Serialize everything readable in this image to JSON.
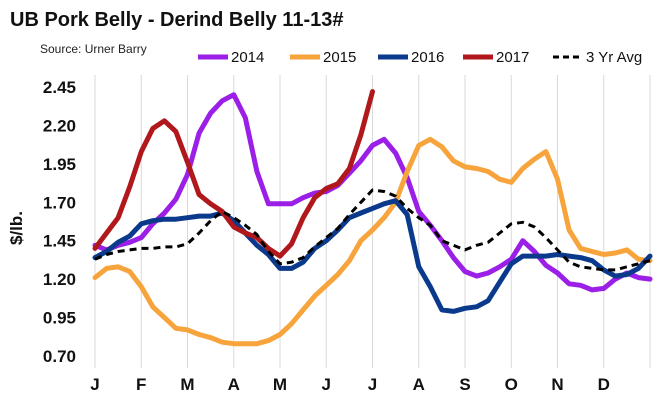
{
  "chart_data": {
    "type": "line",
    "title": "UB Pork Belly - Derind Belly 11-13#",
    "subtitle": "Source: Urner Barry",
    "ylabel": "$/lb.",
    "xlabel": "",
    "ylim": [
      0.7,
      2.45
    ],
    "xlim": [
      0,
      12
    ],
    "yticks": [
      0.7,
      0.95,
      1.2,
      1.45,
      1.7,
      1.95,
      2.2,
      2.45
    ],
    "ytick_labels": [
      "0.70",
      "0.95",
      "1.20",
      "1.45",
      "1.70",
      "1.95",
      "2.20",
      "2.45"
    ],
    "xtick_labels": [
      "J",
      "F",
      "M",
      "A",
      "M",
      "J",
      "J",
      "A",
      "S",
      "O",
      "N",
      "D"
    ],
    "grid": "vertical",
    "legend_position": "top",
    "series": [
      {
        "name": "2014",
        "color": "#9b1fe6",
        "dash": "solid",
        "x": [
          0,
          0.25,
          0.5,
          0.75,
          1,
          1.25,
          1.5,
          1.75,
          2,
          2.25,
          2.5,
          2.75,
          3,
          3.25,
          3.5,
          3.75,
          4,
          4.25,
          4.5,
          4.75,
          5,
          5.25,
          5.5,
          5.75,
          6,
          6.25,
          6.5,
          6.75,
          7,
          7.25,
          7.5,
          7.75,
          8,
          8.25,
          8.5,
          8.75,
          9,
          9.25,
          9.5,
          9.75,
          10,
          10.25,
          10.5,
          10.75,
          11,
          11.25,
          11.5,
          11.75,
          12
        ],
        "values": [
          1.42,
          1.39,
          1.42,
          1.44,
          1.47,
          1.56,
          1.63,
          1.72,
          1.88,
          2.15,
          2.28,
          2.36,
          2.4,
          2.25,
          1.9,
          1.69,
          1.69,
          1.69,
          1.73,
          1.76,
          1.77,
          1.81,
          1.89,
          1.97,
          2.07,
          2.11,
          2.02,
          1.86,
          1.64,
          1.55,
          1.45,
          1.34,
          1.25,
          1.22,
          1.24,
          1.28,
          1.33,
          1.45,
          1.38,
          1.29,
          1.24,
          1.17,
          1.16,
          1.13,
          1.14,
          1.2,
          1.24,
          1.21,
          1.2
        ]
      },
      {
        "name": "2015",
        "color": "#f7a43c",
        "dash": "solid",
        "x": [
          0,
          0.25,
          0.5,
          0.75,
          1,
          1.25,
          1.5,
          1.75,
          2,
          2.25,
          2.5,
          2.75,
          3,
          3.25,
          3.5,
          3.75,
          4,
          4.25,
          4.5,
          4.75,
          5,
          5.25,
          5.5,
          5.75,
          6,
          6.25,
          6.5,
          6.75,
          7,
          7.25,
          7.5,
          7.75,
          8,
          8.25,
          8.5,
          8.75,
          9,
          9.25,
          9.5,
          9.75,
          10,
          10.25,
          10.5,
          10.75,
          11,
          11.25,
          11.5,
          11.75,
          12
        ],
        "values": [
          1.21,
          1.27,
          1.28,
          1.25,
          1.15,
          1.02,
          0.95,
          0.88,
          0.87,
          0.84,
          0.82,
          0.79,
          0.78,
          0.78,
          0.78,
          0.8,
          0.84,
          0.91,
          1.0,
          1.09,
          1.16,
          1.23,
          1.32,
          1.45,
          1.52,
          1.6,
          1.7,
          1.9,
          2.07,
          2.11,
          2.06,
          1.97,
          1.93,
          1.92,
          1.9,
          1.85,
          1.83,
          1.92,
          1.98,
          2.03,
          1.85,
          1.52,
          1.4,
          1.38,
          1.36,
          1.37,
          1.39,
          1.33,
          1.32
        ]
      },
      {
        "name": "2016",
        "color": "#0b3a8c",
        "dash": "solid",
        "x": [
          0,
          0.25,
          0.5,
          0.75,
          1,
          1.25,
          1.5,
          1.75,
          2,
          2.25,
          2.5,
          2.75,
          3,
          3.25,
          3.5,
          3.75,
          4,
          4.25,
          4.5,
          4.75,
          5,
          5.25,
          5.5,
          5.75,
          6,
          6.25,
          6.5,
          6.75,
          7,
          7.25,
          7.5,
          7.75,
          8,
          8.25,
          8.5,
          8.75,
          9,
          9.25,
          9.5,
          9.75,
          10,
          10.25,
          10.5,
          10.75,
          11,
          11.25,
          11.5,
          11.75,
          12
        ],
        "values": [
          1.34,
          1.38,
          1.44,
          1.48,
          1.56,
          1.58,
          1.59,
          1.59,
          1.6,
          1.61,
          1.61,
          1.63,
          1.58,
          1.5,
          1.42,
          1.36,
          1.27,
          1.27,
          1.31,
          1.4,
          1.45,
          1.52,
          1.6,
          1.63,
          1.66,
          1.69,
          1.71,
          1.62,
          1.28,
          1.15,
          1.0,
          0.99,
          1.01,
          1.02,
          1.06,
          1.18,
          1.3,
          1.35,
          1.35,
          1.35,
          1.36,
          1.35,
          1.34,
          1.32,
          1.26,
          1.22,
          1.23,
          1.27,
          1.35
        ]
      },
      {
        "name": "2017",
        "color": "#b0181c",
        "dash": "solid",
        "x": [
          0,
          0.25,
          0.5,
          0.75,
          1,
          1.25,
          1.5,
          1.75,
          2,
          2.25,
          2.5,
          2.75,
          3,
          3.25,
          3.5,
          3.75,
          4,
          4.25,
          4.5,
          4.75,
          5,
          5.25,
          5.5,
          5.75,
          6
        ],
        "values": [
          1.4,
          1.5,
          1.6,
          1.8,
          2.03,
          2.18,
          2.23,
          2.16,
          1.96,
          1.75,
          1.69,
          1.64,
          1.54,
          1.5,
          1.47,
          1.4,
          1.35,
          1.43,
          1.6,
          1.73,
          1.79,
          1.82,
          1.92,
          2.14,
          2.42
        ]
      },
      {
        "name": "3 Yr Avg",
        "color": "#000000",
        "dash": "dashed",
        "x": [
          0,
          0.25,
          0.5,
          0.75,
          1,
          1.25,
          1.5,
          1.75,
          2,
          2.25,
          2.5,
          2.75,
          3,
          3.25,
          3.5,
          3.75,
          4,
          4.25,
          4.5,
          4.75,
          5,
          5.25,
          5.5,
          5.75,
          6,
          6.25,
          6.5,
          6.75,
          7,
          7.25,
          7.5,
          7.75,
          8,
          8.25,
          8.5,
          8.75,
          9,
          9.25,
          9.5,
          9.75,
          10,
          10.25,
          10.5,
          10.75,
          11,
          11.25,
          11.5,
          11.75,
          12
        ],
        "values": [
          1.33,
          1.36,
          1.38,
          1.39,
          1.4,
          1.4,
          1.41,
          1.41,
          1.43,
          1.5,
          1.58,
          1.64,
          1.6,
          1.55,
          1.49,
          1.38,
          1.3,
          1.31,
          1.34,
          1.41,
          1.47,
          1.53,
          1.62,
          1.7,
          1.78,
          1.77,
          1.74,
          1.66,
          1.6,
          1.55,
          1.45,
          1.42,
          1.39,
          1.42,
          1.44,
          1.5,
          1.56,
          1.57,
          1.54,
          1.47,
          1.39,
          1.31,
          1.28,
          1.27,
          1.26,
          1.26,
          1.28,
          1.3,
          1.32
        ]
      }
    ]
  }
}
